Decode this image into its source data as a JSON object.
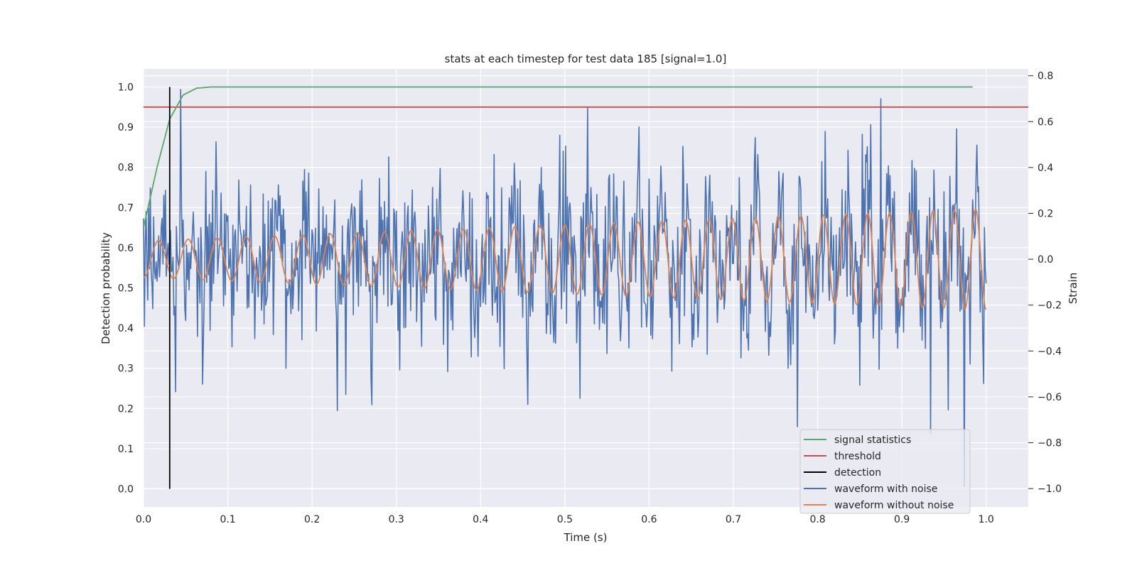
{
  "chart_data": {
    "type": "line",
    "title": "stats at each timestep for test data 185 [signal=1.0]",
    "xlabel": "Time (s)",
    "ylabel": "Detection probability",
    "ylabel_right": "Strain",
    "xlim": [
      0.0,
      1.05
    ],
    "ylim": [
      -0.045,
      1.045
    ],
    "ylim_right": [
      -1.08,
      0.83
    ],
    "x_ticks": [
      0.0,
      0.1,
      0.2,
      0.3,
      0.4,
      0.5,
      0.6,
      0.7,
      0.8,
      0.9,
      1.0
    ],
    "y_ticks": [
      0.0,
      0.1,
      0.2,
      0.3,
      0.4,
      0.5,
      0.6,
      0.7,
      0.8,
      0.9,
      1.0
    ],
    "y_right_ticks": [
      -1.0,
      -0.8,
      -0.6,
      -0.4,
      -0.2,
      0.0,
      0.2,
      0.4,
      0.6,
      0.8
    ],
    "x_tick_labels": [
      "0.0",
      "0.1",
      "0.2",
      "0.3",
      "0.4",
      "0.5",
      "0.6",
      "0.7",
      "0.8",
      "0.9",
      "1.0"
    ],
    "y_tick_labels": [
      "0.0",
      "0.1",
      "0.2",
      "0.3",
      "0.4",
      "0.5",
      "0.6",
      "0.7",
      "0.8",
      "0.9",
      "1.0"
    ],
    "y_right_tick_labels": [
      "−1.0",
      "−0.8",
      "−0.6",
      "−0.4",
      "−0.2",
      "0.0",
      "0.2",
      "0.4",
      "0.6",
      "0.8"
    ],
    "grid": true,
    "legend_position": "bottom-right",
    "colors": {
      "background": "#eaeaf2",
      "grid": "#ffffff",
      "signal": "#55a868",
      "threshold": "#c44e52",
      "detection": "#000000",
      "noisy": "#4c72b0",
      "clean": "#dd8452"
    },
    "series": [
      {
        "name": "signal statistics",
        "axis": "left",
        "x": [
          0.0,
          0.016,
          0.031,
          0.047,
          0.063,
          0.08,
          0.1,
          0.2,
          0.3,
          0.4,
          0.5,
          0.6,
          0.7,
          0.8,
          0.9,
          0.984
        ],
        "y": [
          0.65,
          0.8,
          0.92,
          0.98,
          0.997,
          1.0,
          1.0,
          1.0,
          1.0,
          1.0,
          1.0,
          1.0,
          1.0,
          1.0,
          1.0,
          1.0
        ]
      },
      {
        "name": "threshold",
        "axis": "left",
        "x": [
          0.0,
          1.05
        ],
        "y": [
          0.95,
          0.95
        ]
      },
      {
        "name": "detection",
        "axis": "left",
        "x": [
          0.031,
          0.031
        ],
        "y": [
          0.0,
          1.0
        ]
      },
      {
        "name": "waveform with noise",
        "axis": "right",
        "x_start": 0.0,
        "x_end": 1.0,
        "amplitude_start": 0.08,
        "amplitude_end": 0.22,
        "cycles_start": 28,
        "cycles_end": 40,
        "noise_std": 0.18,
        "num_points": 1000,
        "extremes": [
          {
            "x": 0.044,
            "y": 0.74
          },
          {
            "x": 0.23,
            "y": -0.66
          },
          {
            "x": 0.776,
            "y": -0.73
          },
          {
            "x": 0.875,
            "y": 0.7
          },
          {
            "x": 0.934,
            "y": -0.76
          },
          {
            "x": 0.974,
            "y": -0.99
          }
        ]
      },
      {
        "name": "waveform without noise",
        "axis": "right",
        "x_start": 0.0,
        "x_end": 1.0,
        "amplitude_start": 0.08,
        "amplitude_end": 0.22,
        "cycles_start": 28,
        "cycles_end": 40,
        "num_points": 1000
      }
    ]
  }
}
